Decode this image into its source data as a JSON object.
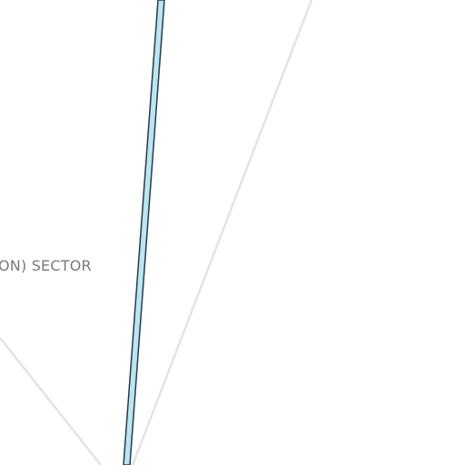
{
  "map": {
    "area_label": "ON) SECTOR",
    "colors": {
      "background": "#ffffff",
      "road_line": "#e3e3e3",
      "river_fill": "#b8e6f5",
      "river_outline": "#2b3a44",
      "label_text": "#7a7a7a"
    }
  }
}
